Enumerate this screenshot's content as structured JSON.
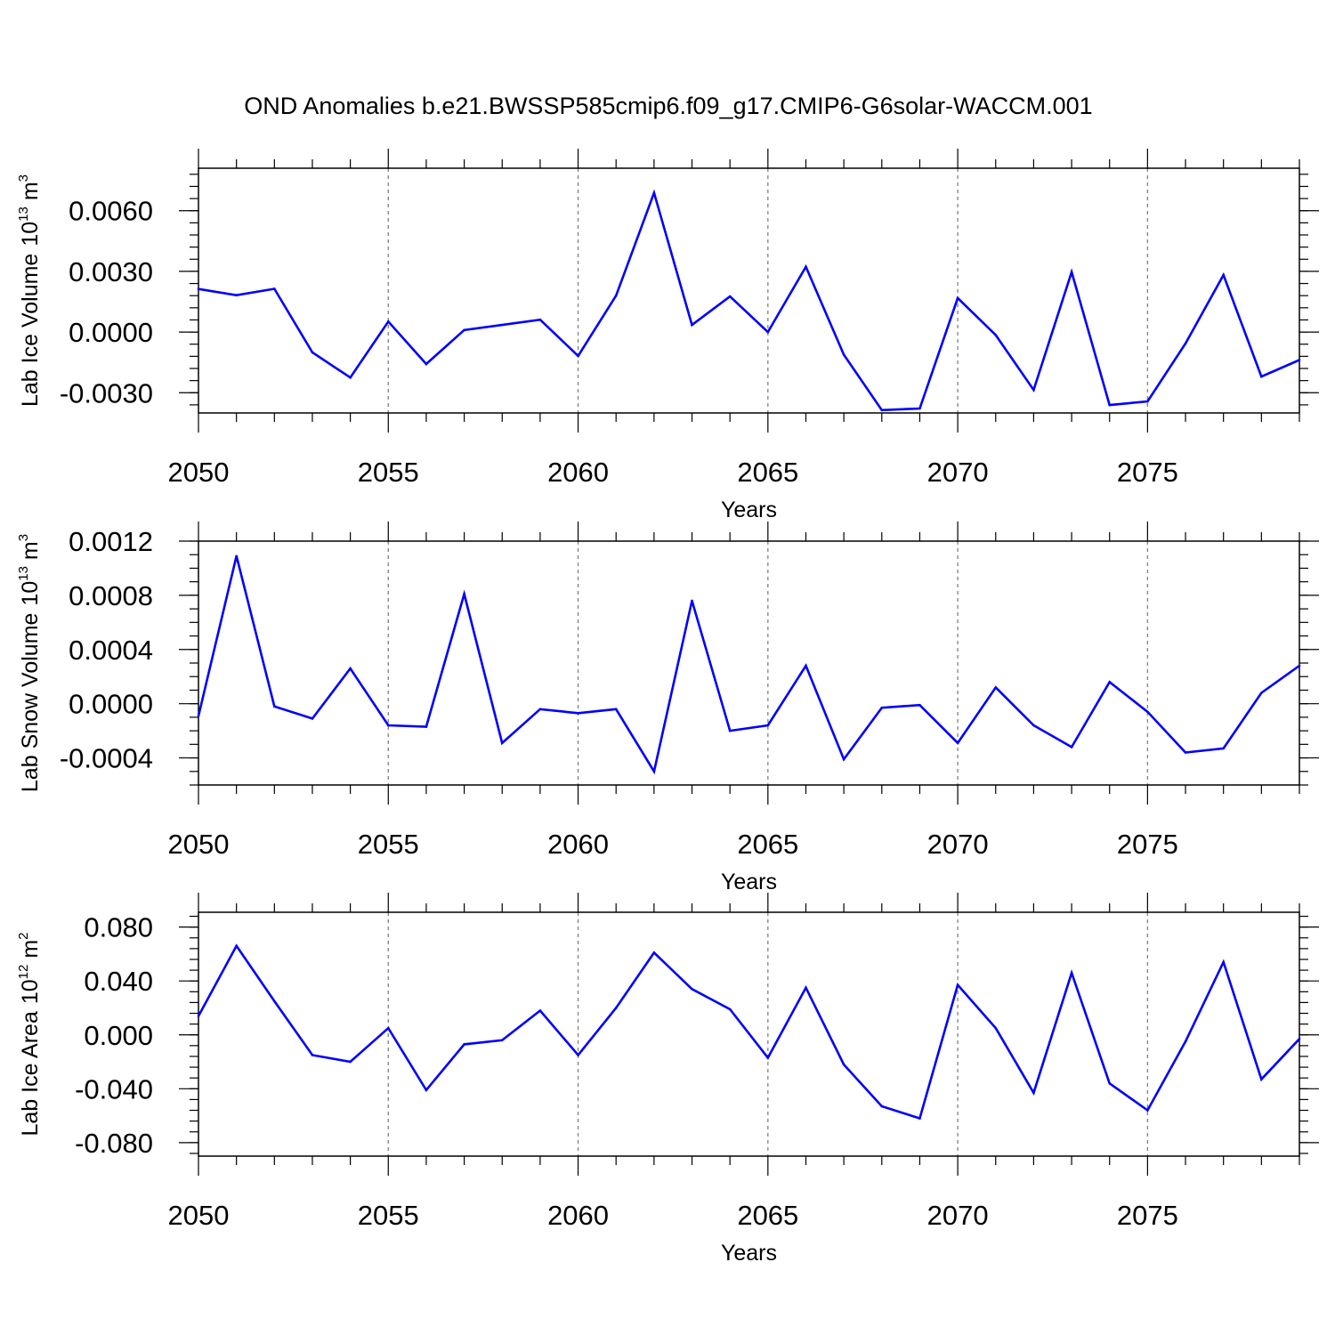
{
  "title": "OND Anomalies b.e21.BWSSP585cmip6.f09_g17.CMIP6-G6solar-WACCM.001",
  "line_color": "#0000ff",
  "grid_color": "#808080",
  "chart_data": [
    {
      "type": "line",
      "ylabel": "Lab Ice Volume",
      "ylabel_unit_base": "10",
      "ylabel_unit_exp": "13",
      "ylabel_unit_sym": "m",
      "ylabel_unit_pow": "3",
      "xlabel": "Years",
      "xlim": [
        2050,
        2079
      ],
      "ylim": [
        -0.004,
        0.0081
      ],
      "y_ticks": [
        -0.003,
        0.0,
        0.003,
        0.006
      ],
      "y_tick_labels": [
        "-0.0030",
        "0.0000",
        "0.0030",
        "0.0060"
      ],
      "y_minor_step": 0.0006,
      "x_ticks": [
        2050,
        2055,
        2060,
        2065,
        2070,
        2075
      ],
      "x_tick_labels": [
        "2050",
        "2055",
        "2060",
        "2065",
        "2070",
        "2075"
      ],
      "grid_x": [
        2055,
        2060,
        2065,
        2070,
        2075
      ],
      "x": [
        2050,
        2051,
        2052,
        2053,
        2054,
        2055,
        2056,
        2057,
        2058,
        2059,
        2060,
        2061,
        2062,
        2063,
        2064,
        2065,
        2066,
        2067,
        2068,
        2069,
        2070,
        2071,
        2072,
        2073,
        2074,
        2075,
        2076,
        2077,
        2078,
        2079
      ],
      "y": [
        0.00213,
        0.00182,
        0.00214,
        -0.00101,
        -0.00225,
        0.00052,
        -0.00158,
        0.0001,
        0.00035,
        0.00061,
        -0.00118,
        0.0018,
        0.00688,
        0.00035,
        0.00176,
        0.0,
        0.00323,
        -0.00112,
        -0.00386,
        -0.00378,
        0.00168,
        -0.00015,
        -0.00286,
        0.00297,
        -0.00361,
        -0.00343,
        -0.00057,
        0.00282,
        -0.0022,
        -0.00138
      ]
    },
    {
      "type": "line",
      "ylabel": "Lab Snow Volume",
      "ylabel_unit_base": "10",
      "ylabel_unit_exp": "13",
      "ylabel_unit_sym": "m",
      "ylabel_unit_pow": "3",
      "xlabel": "Years",
      "xlim": [
        2050,
        2079
      ],
      "ylim": [
        -0.0006,
        0.0012
      ],
      "y_ticks": [
        -0.0004,
        0.0,
        0.0004,
        0.0008,
        0.0012
      ],
      "y_tick_labels": [
        "-0.0004",
        "0.0000",
        "0.0004",
        "0.0008",
        "0.0012"
      ],
      "y_minor_step": 0.0001,
      "x_ticks": [
        2050,
        2055,
        2060,
        2065,
        2070,
        2075
      ],
      "x_tick_labels": [
        "2050",
        "2055",
        "2060",
        "2065",
        "2070",
        "2075"
      ],
      "grid_x": [
        2055,
        2060,
        2065,
        2070,
        2075
      ],
      "x": [
        2050,
        2051,
        2052,
        2053,
        2054,
        2055,
        2056,
        2057,
        2058,
        2059,
        2060,
        2061,
        2062,
        2063,
        2064,
        2065,
        2066,
        2067,
        2068,
        2069,
        2070,
        2071,
        2072,
        2073,
        2074,
        2075,
        2076,
        2077,
        2078,
        2079
      ],
      "y": [
        -9e-05,
        0.00109,
        -2e-05,
        -0.00011,
        0.00026,
        -0.00016,
        -0.00017,
        0.00081,
        -0.00029,
        -4e-05,
        -7e-05,
        -4e-05,
        -0.0005,
        0.00076,
        -0.0002,
        -0.00016,
        0.00028,
        -0.00041,
        -3e-05,
        -1e-05,
        -0.00029,
        0.00012,
        -0.00016,
        -0.00032,
        0.00016,
        -6e-05,
        -0.00036,
        -0.00033,
        8e-05,
        0.00028
      ]
    },
    {
      "type": "line",
      "ylabel": "Lab Ice Area",
      "ylabel_unit_base": "10",
      "ylabel_unit_exp": "12",
      "ylabel_unit_sym": "m",
      "ylabel_unit_pow": "2",
      "xlabel": "Years",
      "xlim": [
        2050,
        2079
      ],
      "ylim": [
        -0.09,
        0.091
      ],
      "y_ticks": [
        -0.08,
        -0.04,
        0.0,
        0.04,
        0.08
      ],
      "y_tick_labels": [
        "-0.080",
        "-0.040",
        "0.000",
        "0.040",
        "0.080"
      ],
      "y_minor_step": 0.008,
      "x_ticks": [
        2050,
        2055,
        2060,
        2065,
        2070,
        2075
      ],
      "x_tick_labels": [
        "2050",
        "2055",
        "2060",
        "2065",
        "2070",
        "2075"
      ],
      "grid_x": [
        2055,
        2060,
        2065,
        2070,
        2075
      ],
      "x": [
        2050,
        2051,
        2052,
        2053,
        2054,
        2055,
        2056,
        2057,
        2058,
        2059,
        2060,
        2061,
        2062,
        2063,
        2064,
        2065,
        2066,
        2067,
        2068,
        2069,
        2070,
        2071,
        2072,
        2073,
        2074,
        2075,
        2076,
        2077,
        2078,
        2079
      ],
      "y": [
        0.014,
        0.066,
        0.025,
        -0.015,
        -0.02,
        0.005,
        -0.041,
        -0.007,
        -0.004,
        0.018,
        -0.015,
        0.02,
        0.061,
        0.034,
        0.019,
        -0.017,
        0.035,
        -0.022,
        -0.053,
        -0.062,
        0.037,
        0.005,
        -0.043,
        0.046,
        -0.036,
        -0.056,
        -0.005,
        0.054,
        -0.033,
        -0.003
      ]
    }
  ]
}
